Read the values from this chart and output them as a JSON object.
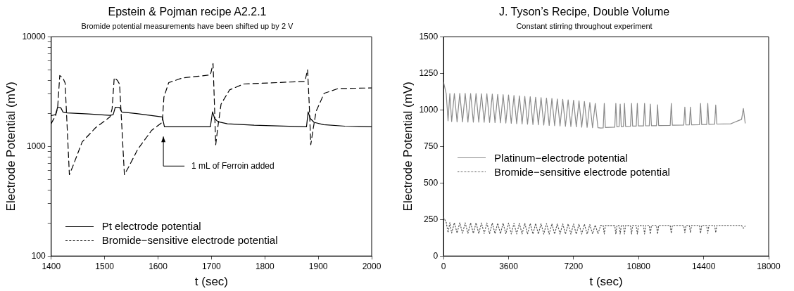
{
  "chart_data": [
    {
      "type": "line",
      "title": "Epstein & Pojman recipe A2.2.1",
      "subtitle": "Bromide potential measurements have been shifted up by 2 V",
      "xlabel": "t (sec)",
      "ylabel": "Electrode Potential (mV)",
      "log": "y",
      "grid": false,
      "legend": "bottom left",
      "xlim": [
        1400,
        2000
      ],
      "xticks": [
        1400,
        1500,
        1600,
        1700,
        1800,
        1900,
        2000
      ],
      "ylim": [
        100,
        10000
      ],
      "yticks": [
        100,
        {
          "value": 200,
          "label": null
        },
        {
          "value": 300,
          "label": null
        },
        {
          "value": 400,
          "label": null
        },
        {
          "value": 500,
          "label": null
        },
        {
          "value": 600,
          "label": null
        },
        {
          "value": 700,
          "label": null
        },
        {
          "value": 800,
          "label": null
        },
        {
          "value": 900,
          "label": null
        },
        1000,
        {
          "value": 2000,
          "label": null
        },
        {
          "value": 3000,
          "label": null
        },
        {
          "value": 4000,
          "label": null
        },
        {
          "value": 5000,
          "label": null
        },
        {
          "value": 6000,
          "label": null
        },
        {
          "value": 7000,
          "label": null
        },
        {
          "value": 8000,
          "label": null
        },
        {
          "value": 9000,
          "label": null
        },
        10000
      ],
      "annotations": [
        "1 mL of Ferroin added"
      ],
      "series": [
        {
          "name": "Pt electrode potential",
          "color": "#000000",
          "line_style": "solid",
          "x": [
            1400,
            1408,
            1412,
            1418,
            1422,
            1430,
            1470,
            1510,
            1516,
            1520,
            1528,
            1532,
            1560,
            1608,
            1612,
            1650,
            1698,
            1702,
            1706,
            1712,
            1730,
            1780,
            1878,
            1881,
            1885,
            1892,
            1910,
            1950,
            2000
          ],
          "values": [
            1910,
            1950,
            2280,
            2250,
            2060,
            2020,
            1980,
            1920,
            1950,
            2280,
            2270,
            2060,
            1990,
            1860,
            1510,
            1510,
            1510,
            2070,
            1800,
            1680,
            1610,
            1560,
            1510,
            2070,
            1800,
            1660,
            1580,
            1530,
            1510
          ]
        },
        {
          "name": "Bromide−sensitive electrode potential",
          "color": "#000000",
          "line_style": "dashed",
          "x": [
            1400,
            1408,
            1412,
            1416,
            1422,
            1426,
            1434,
            1440,
            1458,
            1483,
            1510,
            1514,
            1518,
            1524,
            1528,
            1537,
            1545,
            1562,
            1588,
            1608,
            1611,
            1620,
            1646,
            1698,
            1703,
            1705,
            1708,
            1712,
            1718,
            1734,
            1760,
            1875,
            1880,
            1883,
            1886,
            1890,
            1896,
            1911,
            1937,
            2000
          ],
          "values": [
            1620,
            1900,
            2250,
            4440,
            4200,
            3800,
            553,
            650,
            1100,
            1480,
            1860,
            2200,
            4240,
            4000,
            3700,
            553,
            650,
            940,
            1400,
            1660,
            2820,
            3820,
            4220,
            4490,
            5700,
            3000,
            1035,
            1500,
            2430,
            3280,
            3710,
            3920,
            5000,
            2500,
            1035,
            1400,
            2090,
            3050,
            3370,
            3420
          ]
        }
      ]
    },
    {
      "type": "line",
      "title": "J. Tyson’s Recipe, Double Volume",
      "subtitle": "Constant stirring throughout experiment",
      "xlabel": "t (sec)",
      "ylabel": "Electrode Potential (mV)",
      "grid": false,
      "legend": "left",
      "xlim": [
        0,
        18000
      ],
      "xticks": [
        0,
        3600,
        7200,
        10800,
        14400,
        18000
      ],
      "ylim": [
        0,
        1500
      ],
      "yticks": [
        0,
        250,
        500,
        750,
        1000,
        1250,
        1500
      ],
      "series": [
        {
          "name": "Platinum−electrode potential",
          "color": "#8a8a8a",
          "line_style": "solid",
          "x": [
            0,
            150,
            250,
            350,
            450,
            600,
            750,
            900,
            1050,
            1200,
            1350,
            1500,
            1650,
            1800,
            1950,
            2100,
            2250,
            2400,
            2550,
            2700,
            2850,
            3000,
            3150,
            3300,
            3450,
            3600,
            3750,
            3900,
            4050,
            4200,
            4350,
            4500,
            4650,
            4800,
            4950,
            5100,
            5250,
            5400,
            5550,
            5700,
            5850,
            6000,
            6150,
            6300,
            6450,
            6600,
            6750,
            6900,
            7050,
            7200,
            7350,
            7500,
            7650,
            7800,
            7950,
            8100,
            8250,
            8400,
            8550,
            8700,
            8840,
            8900,
            8960,
            9480,
            9540,
            9600,
            9720,
            9780,
            9840,
            9960,
            10020,
            10080,
            10350,
            10410,
            10470,
            10670,
            10730,
            10790,
            11070,
            11130,
            11190,
            11390,
            11450,
            11510,
            11790,
            11850,
            11910,
            12550,
            12610,
            12670,
            13300,
            13360,
            13420,
            13610,
            13670,
            13730,
            14170,
            14230,
            14290,
            14570,
            14630,
            14690,
            15010,
            15070,
            15130,
            15900,
            16100,
            16300,
            16500,
            16600,
            16700
          ],
          "values": [
            1190,
            1110,
            925,
            1112,
            920,
            1112,
            918,
            1113,
            918,
            1113,
            917,
            1112,
            916,
            1112,
            916,
            1111,
            915,
            1110,
            914,
            1108,
            913,
            1106,
            912,
            1104,
            910,
            1102,
            908,
            1099,
            906,
            1096,
            904,
            1093,
            902,
            1090,
            900,
            1087,
            898,
            1084,
            896,
            1081,
            894,
            1078,
            892,
            1075,
            890,
            1072,
            888,
            1069,
            886,
            1066,
            884,
            1062,
            882,
            1058,
            880,
            1050,
            878,
            1045,
            878,
            876,
            877,
            1045,
            880,
            882,
            1045,
            884,
            885,
            1040,
            886,
            886,
            1045,
            887,
            888,
            1045,
            889,
            889,
            1045,
            890,
            890,
            1045,
            891,
            891,
            1040,
            892,
            892,
            1035,
            893,
            894,
            1044,
            895,
            896,
            1019,
            897,
            897,
            1019,
            898,
            899,
            1044,
            900,
            900,
            1044,
            901,
            902,
            1033,
            903,
            905,
            915,
            925,
            935,
            1010,
            910
          ]
        },
        {
          "name": "Bromide−sensitive electrode potential",
          "color": "#555555",
          "line_style": "dotted",
          "x": [
            0,
            150,
            250,
            350,
            450,
            600,
            750,
            900,
            1050,
            1200,
            1350,
            1500,
            1650,
            1800,
            1950,
            2100,
            2250,
            2400,
            2550,
            2700,
            2850,
            3000,
            3150,
            3300,
            3450,
            3600,
            3750,
            3900,
            4050,
            4200,
            4350,
            4500,
            4650,
            4800,
            4950,
            5100,
            5250,
            5400,
            5550,
            5700,
            5850,
            6000,
            6150,
            6300,
            6450,
            6600,
            6750,
            6900,
            7050,
            7200,
            7350,
            7500,
            7650,
            7800,
            7950,
            8100,
            8250,
            8400,
            8550,
            8700,
            8840,
            8900,
            8960,
            9480,
            9540,
            9600,
            9720,
            9780,
            9840,
            9960,
            10020,
            10080,
            10350,
            10410,
            10470,
            10670,
            10730,
            10790,
            11070,
            11130,
            11190,
            11390,
            11450,
            11510,
            11790,
            11850,
            11910,
            12550,
            12610,
            12670,
            13300,
            13360,
            13420,
            13610,
            13670,
            13730,
            14170,
            14230,
            14290,
            14570,
            14630,
            14690,
            15010,
            15070,
            15130,
            16500,
            16600,
            16700
          ],
          "values": [
            265,
            230,
            160,
            228,
            158,
            228,
            157,
            228,
            156,
            227,
            155,
            227,
            155,
            227,
            154,
            226,
            154,
            226,
            153,
            226,
            153,
            225,
            152,
            225,
            152,
            225,
            151,
            224,
            151,
            224,
            150,
            224,
            150,
            223,
            150,
            223,
            150,
            222,
            150,
            222,
            150,
            221,
            150,
            221,
            150,
            220,
            150,
            220,
            150,
            219,
            150,
            219,
            150,
            218,
            150,
            215,
            152,
            212,
            152,
            210,
            208,
            150,
            208,
            208,
            150,
            208,
            208,
            150,
            208,
            208,
            150,
            208,
            208,
            150,
            208,
            208,
            150,
            208,
            208,
            150,
            209,
            209,
            150,
            209,
            209,
            150,
            209,
            209,
            155,
            209,
            209,
            160,
            209,
            209,
            160,
            209,
            209,
            155,
            209,
            209,
            155,
            209,
            209,
            160,
            209,
            209,
            190,
            205
          ]
        }
      ]
    }
  ]
}
